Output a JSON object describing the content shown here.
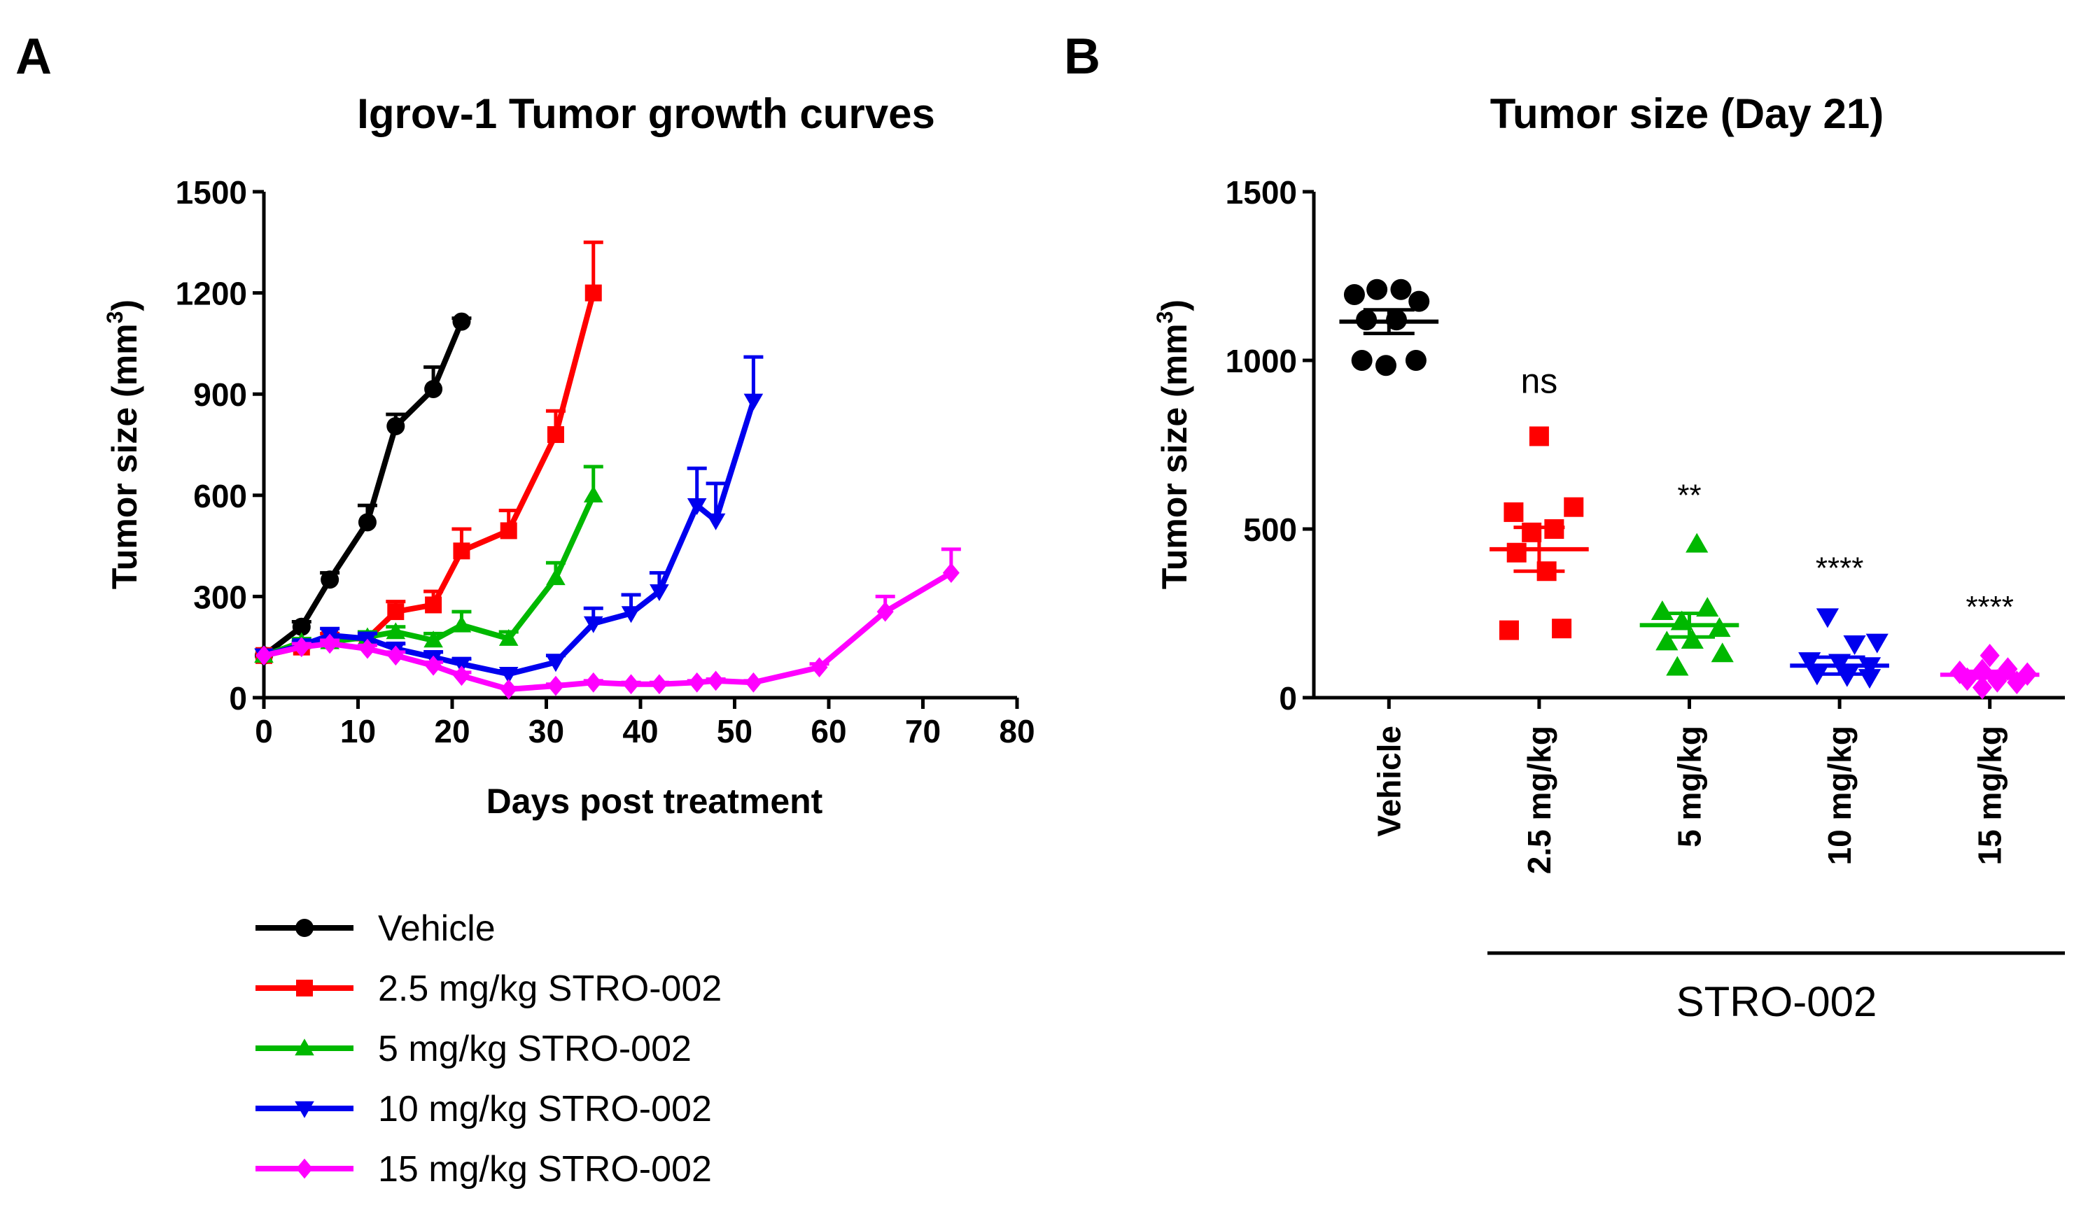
{
  "panel_labels": [
    "A",
    "B"
  ],
  "colors": {
    "Vehicle": "#000000",
    "2.5": "#ff0000",
    "5": "#00b800",
    "10": "#0000ee",
    "15": "#ff00ff"
  },
  "chart_data": [
    {
      "type": "line",
      "title": "Igrov-1 Tumor growth curves",
      "xlabel": "Days post treatment",
      "ylabel": "Tumor size (mm3)",
      "ylabel_main": "Tumor size (mm",
      "ylabel_sup": "3",
      "ylabel_close": ")",
      "xlim": [
        0,
        80
      ],
      "ylim": [
        0,
        1500
      ],
      "xticks": [
        "0",
        "10",
        "20",
        "30",
        "40",
        "50",
        "60",
        "70",
        "80"
      ],
      "yticks": [
        "0",
        "300",
        "600",
        "900",
        "1200",
        "1500"
      ],
      "legend_position": "bottom-left",
      "series": [
        {
          "name": "Vehicle",
          "color": "#000000",
          "marker": "circle",
          "x": [
            0,
            4,
            7,
            11,
            14,
            18,
            21
          ],
          "y": [
            125,
            210,
            350,
            520,
            805,
            915,
            1115
          ],
          "err": [
            0,
            15,
            20,
            50,
            35,
            65,
            10
          ]
        },
        {
          "name": "2.5 mg/kg STRO-002",
          "color": "#ff0000",
          "marker": "square",
          "x": [
            0,
            4,
            7,
            11,
            14,
            18,
            21,
            26,
            31,
            35
          ],
          "y": [
            125,
            150,
            175,
            175,
            255,
            275,
            435,
            495,
            780,
            1200
          ],
          "err": [
            0,
            15,
            15,
            20,
            30,
            40,
            65,
            60,
            70,
            150
          ]
        },
        {
          "name": "5 mg/kg STRO-002",
          "color": "#00b800",
          "marker": "triangle-up",
          "x": [
            0,
            4,
            7,
            11,
            14,
            18,
            21,
            26,
            31,
            35
          ],
          "y": [
            125,
            165,
            165,
            180,
            195,
            170,
            215,
            175,
            355,
            600
          ],
          "err": [
            0,
            10,
            10,
            15,
            15,
            20,
            40,
            20,
            45,
            85
          ]
        },
        {
          "name": "10 mg/kg STRO-002",
          "color": "#0000ee",
          "marker": "triangle-down",
          "x": [
            0,
            4,
            7,
            11,
            14,
            18,
            21,
            26,
            31,
            35,
            39,
            42,
            46,
            48,
            52
          ],
          "y": [
            125,
            155,
            185,
            175,
            145,
            120,
            100,
            70,
            105,
            220,
            250,
            315,
            570,
            525,
            880
          ],
          "err": [
            0,
            10,
            20,
            15,
            15,
            15,
            15,
            10,
            20,
            45,
            55,
            55,
            110,
            110,
            130
          ]
        },
        {
          "name": "15 mg/kg STRO-002",
          "color": "#ff00ff",
          "marker": "diamond",
          "x": [
            0,
            4,
            7,
            11,
            14,
            18,
            21,
            26,
            31,
            35,
            39,
            42,
            46,
            48,
            52,
            59,
            66,
            73
          ],
          "y": [
            125,
            150,
            160,
            145,
            125,
            95,
            65,
            25,
            35,
            45,
            40,
            40,
            45,
            50,
            45,
            90,
            255,
            370
          ],
          "err": [
            0,
            10,
            10,
            10,
            10,
            10,
            10,
            5,
            5,
            5,
            5,
            5,
            5,
            5,
            5,
            10,
            45,
            70
          ]
        }
      ]
    },
    {
      "type": "scatter",
      "title": "Tumor size (Day 21)",
      "ylabel": "Tumor size (mm3)",
      "ylabel_main": "Tumor size (mm",
      "ylabel_sup": "3",
      "ylabel_close": ")",
      "ylim": [
        0,
        1500
      ],
      "yticks": [
        "0",
        "500",
        "1000",
        "1500"
      ],
      "categories": [
        "Vehicle",
        "2.5 mg/kg",
        "5 mg/kg",
        "10 mg/kg",
        "15 mg/kg"
      ],
      "group_label": "STRO-002",
      "significance": [
        "",
        "ns",
        "**",
        "****",
        "****"
      ],
      "groups": [
        {
          "name": "Vehicle",
          "color": "#000000",
          "marker": "circle",
          "mean": 1115,
          "sem": 35,
          "points": [
            [
              -0.23,
              1195
            ],
            [
              -0.08,
              1210
            ],
            [
              0.08,
              1210
            ],
            [
              0.2,
              1175
            ],
            [
              -0.15,
              1120
            ],
            [
              0.05,
              1120
            ],
            [
              -0.18,
              1000
            ],
            [
              -0.02,
              985
            ],
            [
              0.18,
              1000
            ]
          ]
        },
        {
          "name": "2.5 mg/kg",
          "color": "#ff0000",
          "marker": "square",
          "mean": 440,
          "sem": 65,
          "points": [
            [
              0,
              775
            ],
            [
              -0.17,
              550
            ],
            [
              0.23,
              565
            ],
            [
              -0.05,
              490
            ],
            [
              0.1,
              500
            ],
            [
              -0.15,
              430
            ],
            [
              0.05,
              375
            ],
            [
              -0.2,
              200
            ],
            [
              0.15,
              205
            ]
          ]
        },
        {
          "name": "5 mg/kg",
          "color": "#00b800",
          "marker": "triangle-up",
          "mean": 215,
          "sem": 35,
          "points": [
            [
              0.05,
              455
            ],
            [
              -0.18,
              255
            ],
            [
              0.12,
              265
            ],
            [
              -0.05,
              225
            ],
            [
              0.2,
              205
            ],
            [
              -0.15,
              165
            ],
            [
              0.02,
              170
            ],
            [
              0.22,
              130
            ],
            [
              -0.08,
              90
            ]
          ]
        },
        {
          "name": "10 mg/kg",
          "color": "#0000ee",
          "marker": "triangle-down",
          "mean": 95,
          "sem": 25,
          "points": [
            [
              -0.08,
              240
            ],
            [
              0.25,
              165
            ],
            [
              0.1,
              160
            ],
            [
              -0.2,
              110
            ],
            [
              0,
              105
            ],
            [
              0.2,
              95
            ],
            [
              -0.15,
              70
            ],
            [
              0.05,
              65
            ],
            [
              0.2,
              60
            ]
          ]
        },
        {
          "name": "15 mg/kg",
          "color": "#ff00ff",
          "marker": "diamond",
          "mean": 68,
          "sem": 10,
          "points": [
            [
              0,
              125
            ],
            [
              -0.2,
              75
            ],
            [
              -0.05,
              80
            ],
            [
              0.12,
              85
            ],
            [
              0.25,
              70
            ],
            [
              -0.15,
              55
            ],
            [
              0.05,
              50
            ],
            [
              0.18,
              45
            ],
            [
              -0.05,
              30
            ]
          ]
        }
      ]
    }
  ]
}
